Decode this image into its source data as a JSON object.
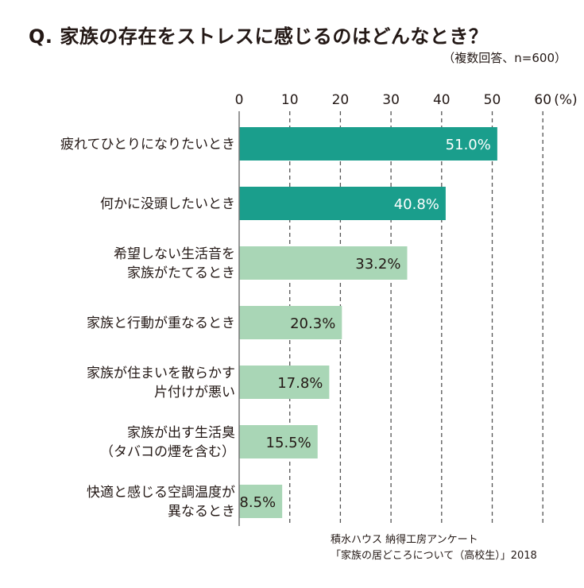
{
  "header": {
    "title": "Q. 家族の存在をストレスに感じるのはどんなとき？",
    "subtitle": "（複数回答、n=600）"
  },
  "chart_data": {
    "type": "bar",
    "orientation": "horizontal",
    "title": "Q. 家族の存在をストレスに感じるのはどんなとき？",
    "categories": [
      [
        "疲れてひとりになりたいとき"
      ],
      [
        "何かに没頭したいとき"
      ],
      [
        "希望しない生活音を",
        "家族がたてるとき"
      ],
      [
        "家族と行動が重なるとき"
      ],
      [
        "家族が住まいを散らかす",
        "片付けが悪い"
      ],
      [
        "家族が出す生活臭",
        "（タバコの煙を含む）"
      ],
      [
        "快適と感じる空調温度が",
        "異なるとき"
      ]
    ],
    "values": [
      51.0,
      40.8,
      33.2,
      20.3,
      17.8,
      15.5,
      8.5
    ],
    "value_labels": [
      "51.0%",
      "40.8%",
      "33.2%",
      "20.3%",
      "17.8%",
      "15.5%",
      "8.5%"
    ],
    "highlight": [
      true,
      true,
      false,
      false,
      false,
      false,
      false
    ],
    "xlim": [
      0,
      60
    ],
    "ticks": [
      0,
      10,
      20,
      30,
      40,
      50,
      60
    ],
    "unit_label": "(%)",
    "grid": "dashed vertical",
    "colors": {
      "highlight": "#1a9e8c",
      "normal": "#a9d6b6",
      "grid": "#555555",
      "axis": "#777777"
    }
  },
  "source": {
    "line1": "積水ハウス 納得工房アンケート",
    "line2": "「家族の居どころについて（高校生）」2018"
  }
}
